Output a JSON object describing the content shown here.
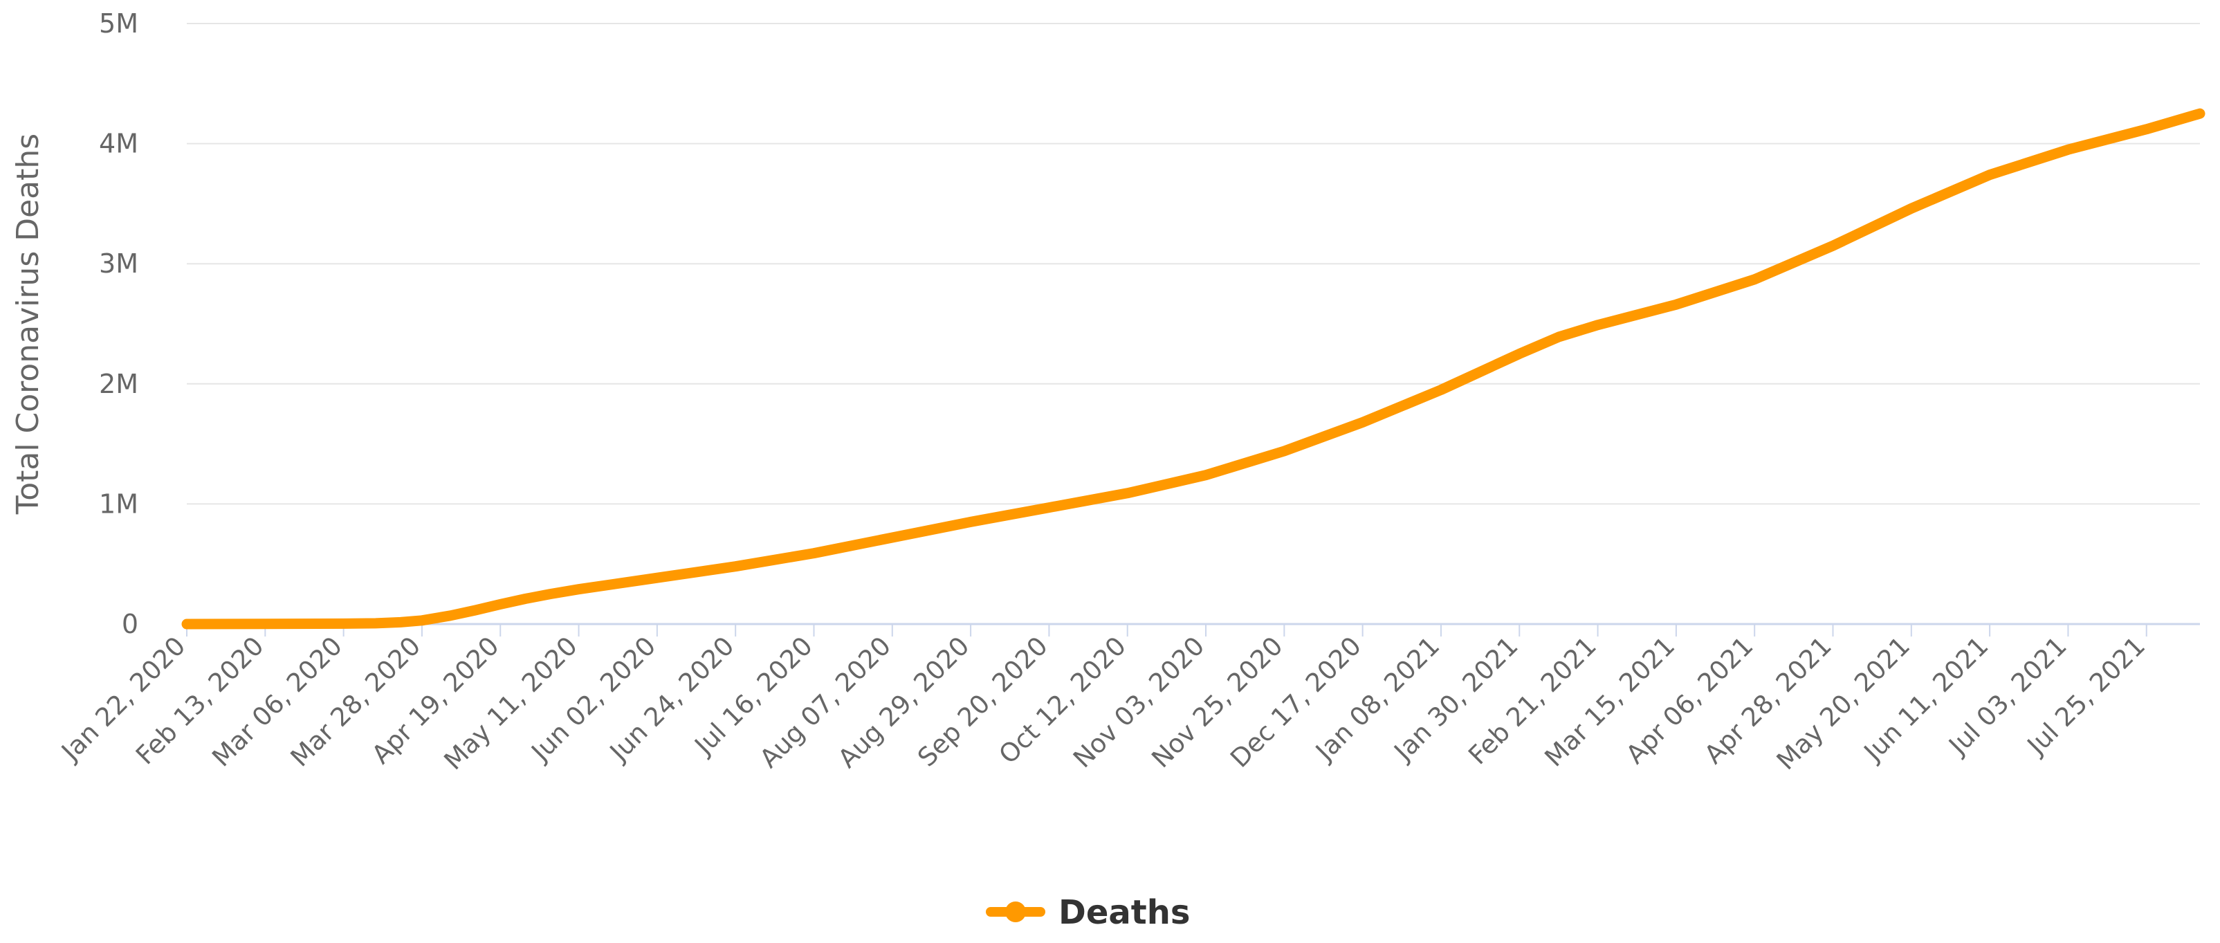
{
  "chart_data": {
    "type": "line",
    "ylabel": "Total Coronavirus Deaths",
    "xlabel": "",
    "ylim": [
      0,
      5000000
    ],
    "y_ticks": [
      {
        "value": 0,
        "label": "0"
      },
      {
        "value": 1000000,
        "label": "1M"
      },
      {
        "value": 2000000,
        "label": "2M"
      },
      {
        "value": 3000000,
        "label": "3M"
      },
      {
        "value": 4000000,
        "label": "4M"
      },
      {
        "value": 5000000,
        "label": "5M"
      }
    ],
    "x_range": [
      "2020-01-22",
      "2021-08-09"
    ],
    "x_ticks": [
      {
        "date": "2020-01-22",
        "label": "Jan 22, 2020"
      },
      {
        "date": "2020-02-13",
        "label": "Feb 13, 2020"
      },
      {
        "date": "2020-03-06",
        "label": "Mar 06, 2020"
      },
      {
        "date": "2020-03-28",
        "label": "Mar 28, 2020"
      },
      {
        "date": "2020-04-19",
        "label": "Apr 19, 2020"
      },
      {
        "date": "2020-05-11",
        "label": "May 11, 2020"
      },
      {
        "date": "2020-06-02",
        "label": "Jun 02, 2020"
      },
      {
        "date": "2020-06-24",
        "label": "Jun 24, 2020"
      },
      {
        "date": "2020-07-16",
        "label": "Jul 16, 2020"
      },
      {
        "date": "2020-08-07",
        "label": "Aug 07, 2020"
      },
      {
        "date": "2020-08-29",
        "label": "Aug 29, 2020"
      },
      {
        "date": "2020-09-20",
        "label": "Sep 20, 2020"
      },
      {
        "date": "2020-10-12",
        "label": "Oct 12, 2020"
      },
      {
        "date": "2020-11-03",
        "label": "Nov 03, 2020"
      },
      {
        "date": "2020-11-25",
        "label": "Nov 25, 2020"
      },
      {
        "date": "2020-12-17",
        "label": "Dec 17, 2020"
      },
      {
        "date": "2021-01-08",
        "label": "Jan 08, 2021"
      },
      {
        "date": "2021-01-30",
        "label": "Jan 30, 2021"
      },
      {
        "date": "2021-02-21",
        "label": "Feb 21, 2021"
      },
      {
        "date": "2021-03-15",
        "label": "Mar 15, 2021"
      },
      {
        "date": "2021-04-06",
        "label": "Apr 06, 2021"
      },
      {
        "date": "2021-04-28",
        "label": "Apr 28, 2021"
      },
      {
        "date": "2021-05-20",
        "label": "May 20, 2021"
      },
      {
        "date": "2021-06-11",
        "label": "Jun 11, 2021"
      },
      {
        "date": "2021-07-03",
        "label": "Jul 03, 2021"
      },
      {
        "date": "2021-07-25",
        "label": "Jul 25, 2021"
      }
    ],
    "series": [
      {
        "name": "Deaths",
        "color": "#ff9900",
        "points": [
          {
            "x": "2020-01-22",
            "y": 17
          },
          {
            "x": "2020-02-13",
            "y": 1400
          },
          {
            "x": "2020-03-06",
            "y": 3500
          },
          {
            "x": "2020-03-15",
            "y": 6500
          },
          {
            "x": "2020-03-22",
            "y": 15000
          },
          {
            "x": "2020-03-28",
            "y": 30000
          },
          {
            "x": "2020-04-05",
            "y": 70000
          },
          {
            "x": "2020-04-12",
            "y": 115000
          },
          {
            "x": "2020-04-19",
            "y": 165000
          },
          {
            "x": "2020-04-26",
            "y": 210000
          },
          {
            "x": "2020-05-03",
            "y": 250000
          },
          {
            "x": "2020-05-11",
            "y": 290000
          },
          {
            "x": "2020-06-02",
            "y": 385000
          },
          {
            "x": "2020-06-24",
            "y": 480000
          },
          {
            "x": "2020-07-16",
            "y": 590000
          },
          {
            "x": "2020-08-07",
            "y": 720000
          },
          {
            "x": "2020-08-29",
            "y": 850000
          },
          {
            "x": "2020-09-20",
            "y": 970000
          },
          {
            "x": "2020-10-12",
            "y": 1090000
          },
          {
            "x": "2020-11-03",
            "y": 1240000
          },
          {
            "x": "2020-11-25",
            "y": 1440000
          },
          {
            "x": "2020-12-17",
            "y": 1680000
          },
          {
            "x": "2021-01-08",
            "y": 1950000
          },
          {
            "x": "2021-01-30",
            "y": 2250000
          },
          {
            "x": "2021-02-10",
            "y": 2390000
          },
          {
            "x": "2021-02-21",
            "y": 2490000
          },
          {
            "x": "2021-03-15",
            "y": 2660000
          },
          {
            "x": "2021-04-06",
            "y": 2870000
          },
          {
            "x": "2021-04-28",
            "y": 3150000
          },
          {
            "x": "2021-05-20",
            "y": 3460000
          },
          {
            "x": "2021-06-11",
            "y": 3740000
          },
          {
            "x": "2021-07-03",
            "y": 3950000
          },
          {
            "x": "2021-07-25",
            "y": 4120000
          },
          {
            "x": "2021-08-09",
            "y": 4250000
          }
        ]
      }
    ],
    "legend": {
      "position": "bottom-center",
      "label": "Deaths"
    },
    "grid": true
  }
}
